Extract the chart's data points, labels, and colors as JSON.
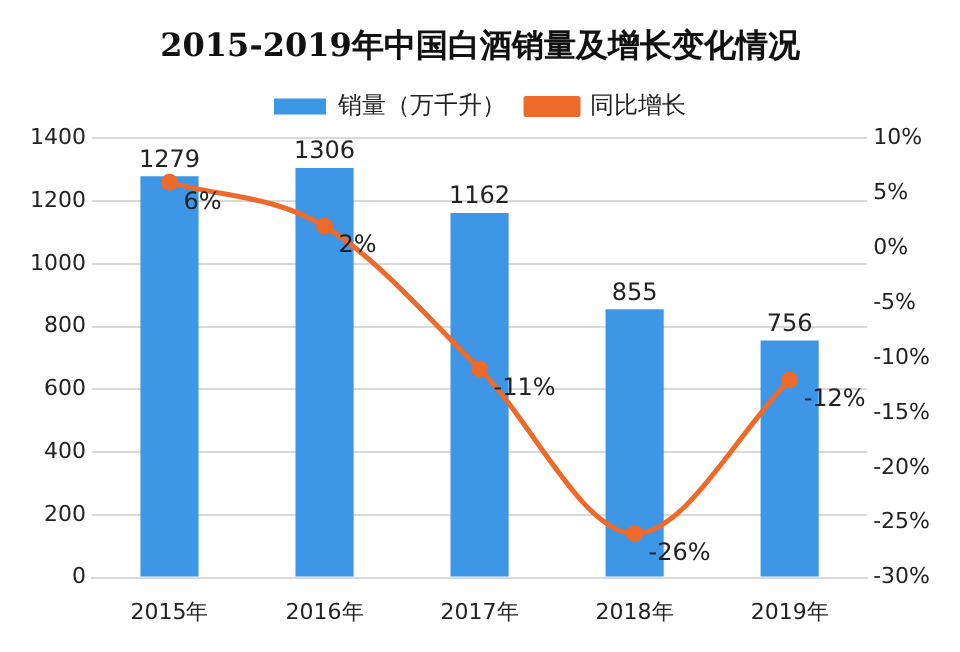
{
  "chart_data": {
    "type": "bar",
    "title": "2015-2019年中国白酒销量及增长变化情况",
    "categories": [
      "2015年",
      "2016年",
      "2017年",
      "2018年",
      "2019年"
    ],
    "series": [
      {
        "name": "销量（万千升）",
        "color": "#3d96e6",
        "values": [
          1279,
          1306,
          1162,
          855,
          756
        ],
        "value_labels": [
          "1279",
          "1306",
          "1162",
          "855",
          "756"
        ]
      },
      {
        "name": "同比增长",
        "type": "line",
        "axis": "y2",
        "color": "#ed6a2b",
        "values": [
          6,
          2,
          -11,
          -26,
          -12
        ],
        "value_labels": [
          "6%",
          "2%",
          "-11%",
          "-26%",
          "-12%"
        ]
      }
    ],
    "ylim": [
      0,
      1400
    ],
    "yticks": [
      0,
      200,
      400,
      600,
      800,
      1000,
      1200,
      1400
    ],
    "y2lim": [
      -30,
      10
    ],
    "y2ticks": [
      {
        "value": -30,
        "label": "-30%"
      },
      {
        "value": -25,
        "label": "-25%"
      },
      {
        "value": -20,
        "label": "-20%"
      },
      {
        "value": -15,
        "label": "-15%"
      },
      {
        "value": -10,
        "label": "-10%"
      },
      {
        "value": -5,
        "label": "-5%"
      },
      {
        "value": 0,
        "label": "0%"
      },
      {
        "value": 5,
        "label": "5%"
      },
      {
        "value": 10,
        "label": "10%"
      }
    ],
    "grid": "y",
    "legend": "top",
    "marker": "circle",
    "line_style": "solid"
  }
}
